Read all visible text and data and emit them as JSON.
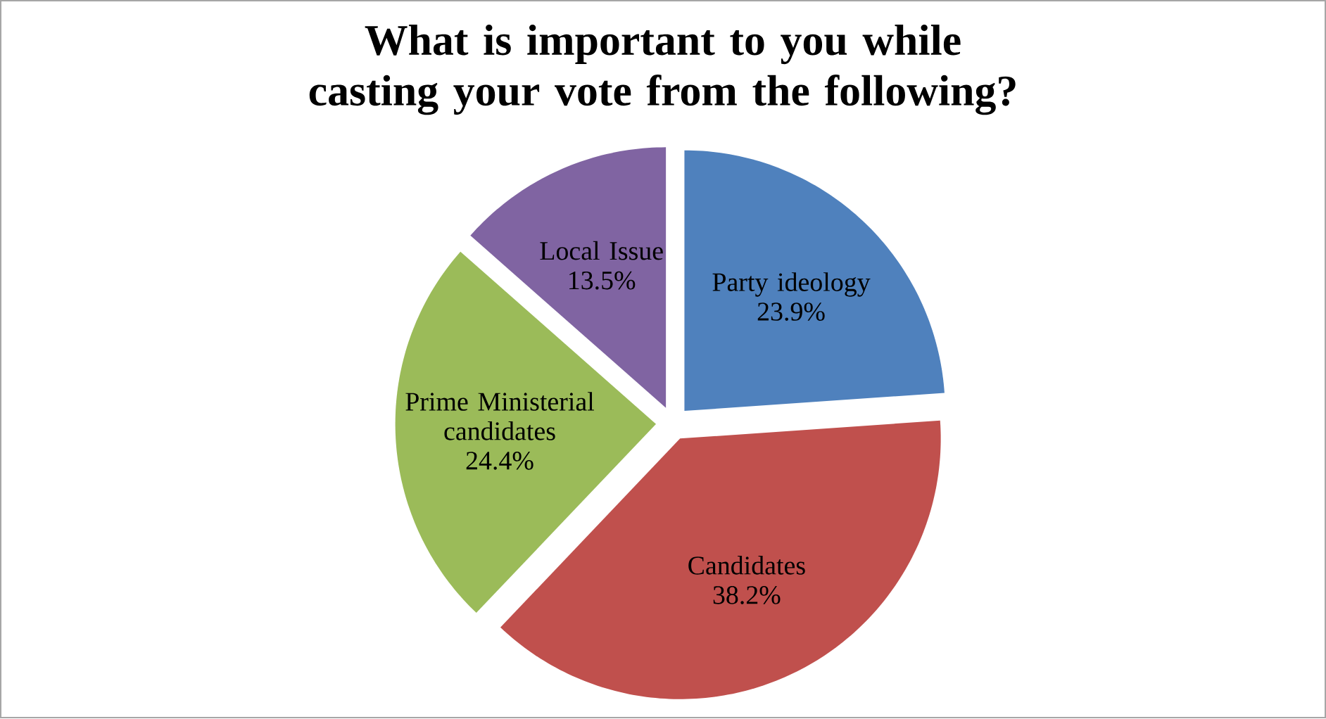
{
  "chart_data": {
    "type": "pie",
    "title": "What is important to you while casting your vote from the following?",
    "categories": [
      "Party ideology",
      "Candidates",
      "Prime Ministerial candidates",
      "Local Issue"
    ],
    "values": [
      23.9,
      38.2,
      24.4,
      13.5
    ],
    "value_labels": [
      "23.9%",
      "38.2%",
      "24.4%",
      "13.5%"
    ],
    "colors": [
      "#4f81bd",
      "#c0504d",
      "#9bbb59",
      "#8064a2"
    ]
  }
}
